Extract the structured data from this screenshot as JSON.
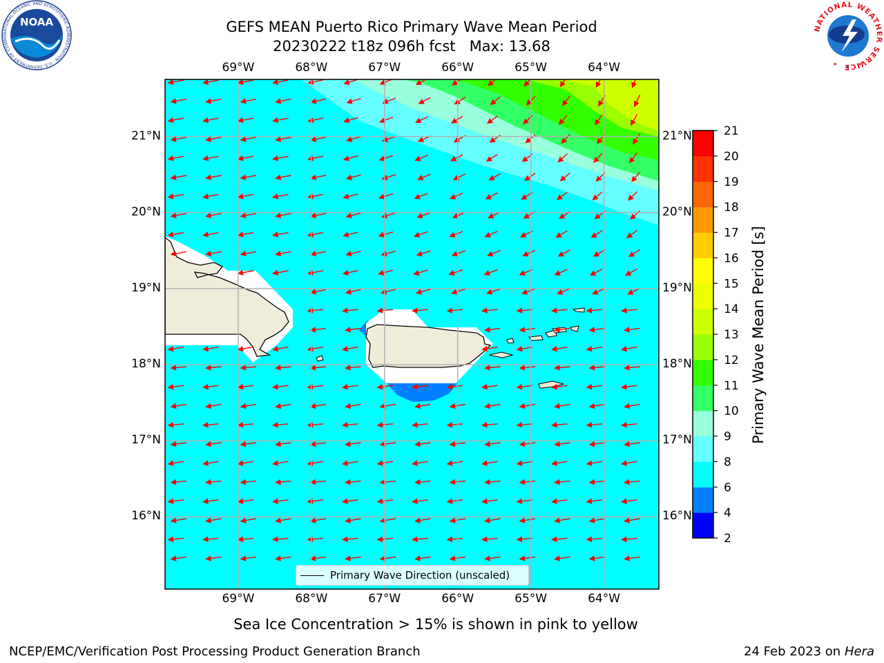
{
  "header": {
    "title_line1": "GEFS MEAN Puerto Rico Primary Wave Mean Period",
    "title_line2": "20230222 t18z 096h fcst",
    "max_label": "Max: 13.68",
    "left_logo_text": "NOAA",
    "left_logo_ring": "NATIONAL OCEANIC AND ATMOSPHERIC ADMINISTRATION · U.S. DEPARTMENT OF COMMERCE",
    "right_logo_ring": "NATIONAL WEATHER SERVICE"
  },
  "map": {
    "lon_labels": [
      "69°W",
      "68°W",
      "67°W",
      "66°W",
      "65°W",
      "64°W"
    ],
    "lat_labels": [
      "21°N",
      "20°N",
      "19°N",
      "18°N",
      "17°N",
      "16°N"
    ],
    "lon_values": [
      -69,
      -68,
      -67,
      -66,
      -65,
      -64
    ],
    "lat_values": [
      21,
      20,
      19,
      18,
      17,
      16
    ],
    "lon_range": [
      -70,
      -63.25
    ],
    "lat_range": [
      15.05,
      21.75
    ],
    "grid": true,
    "legend_label": "Primary Wave Direction (unscaled)",
    "legend_placement": "bottom-center",
    "colors": {
      "ocean": "#00ffff",
      "land": "#efecd9",
      "arrow": "#ff0000"
    }
  },
  "colorbar": {
    "label": "Primary Wave Mean Period [s]",
    "ticks": [
      "2",
      "4",
      "6",
      "8",
      "9",
      "10",
      "11",
      "12",
      "13",
      "14",
      "15",
      "16",
      "17",
      "18",
      "19",
      "20",
      "21"
    ],
    "colors": [
      "#0000ff",
      "#0080ff",
      "#00ffff",
      "#66ffff",
      "#99ffdd",
      "#33ff66",
      "#33ff00",
      "#99ff00",
      "#ccff00",
      "#eeff00",
      "#ffff00",
      "#ffcc00",
      "#ff9900",
      "#ff6600",
      "#ff3300",
      "#ff0000"
    ]
  },
  "footer": {
    "sea_ice_note": "Sea Ice Concentration > 15% is shown in pink to yellow",
    "credit": "NCEP/EMC/Verification Post Processing Product Generation Branch",
    "date": "24 Feb 2023 on",
    "machine": "Hera"
  }
}
